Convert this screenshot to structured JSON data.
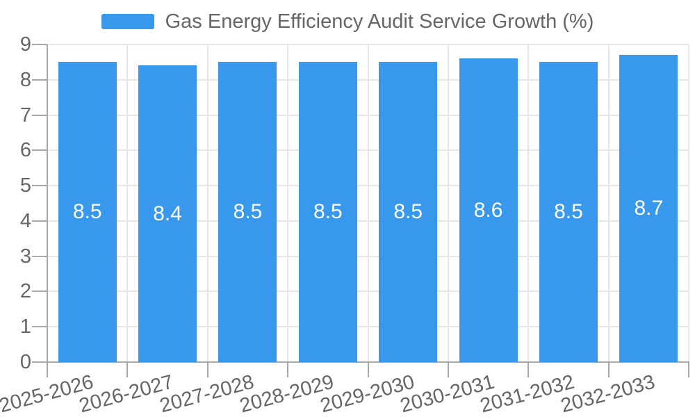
{
  "chart_data": {
    "type": "bar",
    "title": "Gas Energy Efficiency Audit Service Growth (%)",
    "categories": [
      "2025-2026",
      "2026-2027",
      "2027-2028",
      "2028-2029",
      "2029-2030",
      "2030-2031",
      "2031-2032",
      "2032-2033"
    ],
    "values": [
      8.5,
      8.4,
      8.5,
      8.5,
      8.5,
      8.6,
      8.5,
      8.7
    ],
    "xlabel": "",
    "ylabel": "",
    "ylim": [
      0,
      9
    ],
    "yticks": [
      0,
      1,
      2,
      3,
      4,
      5,
      6,
      7,
      8,
      9
    ],
    "grid": true,
    "legend_position": "top",
    "colors": {
      "bar": "#3899EC",
      "bar_label": "#FFFFFF",
      "axis_text": "#666666",
      "grid_line": "#E6E6E6",
      "axis_line": "#A8A8A8",
      "background": "#FFFFFF"
    }
  }
}
